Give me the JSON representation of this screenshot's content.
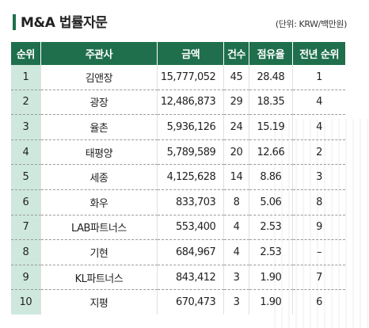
{
  "header": {
    "title": "M&A 법률자문",
    "unit": "(단위: KRW/백만원)"
  },
  "columns": [
    "순위",
    "주관사",
    "금액",
    "건수",
    "점유율",
    "전년 순위"
  ],
  "rows": [
    {
      "rank": "1",
      "firm": "김앤장",
      "amount": "15,777,052",
      "count": "45",
      "share": "28.48",
      "prev": "1"
    },
    {
      "rank": "2",
      "firm": "광장",
      "amount": "12,486,873",
      "count": "29",
      "share": "18.35",
      "prev": "4"
    },
    {
      "rank": "3",
      "firm": "율촌",
      "amount": "5,936,126",
      "count": "24",
      "share": "15.19",
      "prev": "4"
    },
    {
      "rank": "4",
      "firm": "태평양",
      "amount": "5,789,589",
      "count": "20",
      "share": "12.66",
      "prev": "2"
    },
    {
      "rank": "5",
      "firm": "세종",
      "amount": "4,125,628",
      "count": "14",
      "share": "8.86",
      "prev": "3"
    },
    {
      "rank": "6",
      "firm": "화우",
      "amount": "833,703",
      "count": "8",
      "share": "5.06",
      "prev": "8"
    },
    {
      "rank": "7",
      "firm": "LAB파트너스",
      "amount": "553,400",
      "count": "4",
      "share": "2.53",
      "prev": "9"
    },
    {
      "rank": "8",
      "firm": "기현",
      "amount": "684,967",
      "count": "4",
      "share": "2.53",
      "prev": "–"
    },
    {
      "rank": "9",
      "firm": "KL파트너스",
      "amount": "843,412",
      "count": "3",
      "share": "1.90",
      "prev": "7"
    },
    {
      "rank": "10",
      "firm": "지평",
      "amount": "670,473",
      "count": "3",
      "share": "1.90",
      "prev": "6"
    }
  ],
  "colors": {
    "header_bg": "#1f6f4c",
    "rank_bg": "#cfe8dd"
  }
}
